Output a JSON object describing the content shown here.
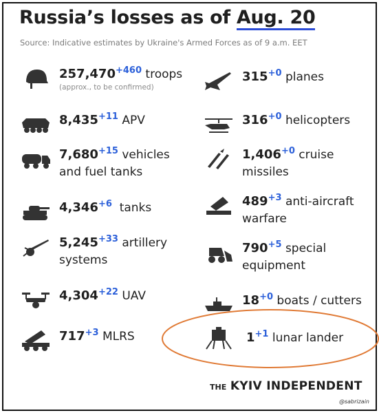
{
  "header": {
    "title": "Russia’s losses as of",
    "date": "Aug. 20",
    "source": "Source: Indicative estimates by Ukraine's Armed Forces as of 9 a.m. EET"
  },
  "items": [
    {
      "value": "257,470",
      "delta": "+460",
      "label": "troops",
      "note": "(approx., to be confirmed)"
    },
    {
      "value": "8,435",
      "delta": "+11",
      "label": "APV"
    },
    {
      "value": "7,680",
      "delta": "+15",
      "label": "vehicles and fuel tanks"
    },
    {
      "value": "4,346",
      "delta": "+6",
      "label": "tanks"
    },
    {
      "value": "5,245",
      "delta": "+33",
      "label": "artillery systems"
    },
    {
      "value": "4,304",
      "delta": "+22",
      "label": "UAV"
    },
    {
      "value": "717",
      "delta": "+3",
      "label": "MLRS"
    },
    {
      "value": "315",
      "delta": "+0",
      "label": "planes"
    },
    {
      "value": "316",
      "delta": "+0",
      "label": "helicopters"
    },
    {
      "value": "1,406",
      "delta": "+0",
      "label": "cruise missiles"
    },
    {
      "value": "489",
      "delta": "+3",
      "label": "anti-aircraft warfare"
    },
    {
      "value": "790",
      "delta": "+5",
      "label": "special equipment"
    },
    {
      "value": "18",
      "delta": "+0",
      "label": "boats / cutters"
    },
    {
      "value": "1",
      "delta": "+1",
      "label": "lunar lander"
    }
  ],
  "footer": {
    "prefix": "THE",
    "name": "KYIV INDEPENDENT",
    "credit": "@sabrizain"
  }
}
